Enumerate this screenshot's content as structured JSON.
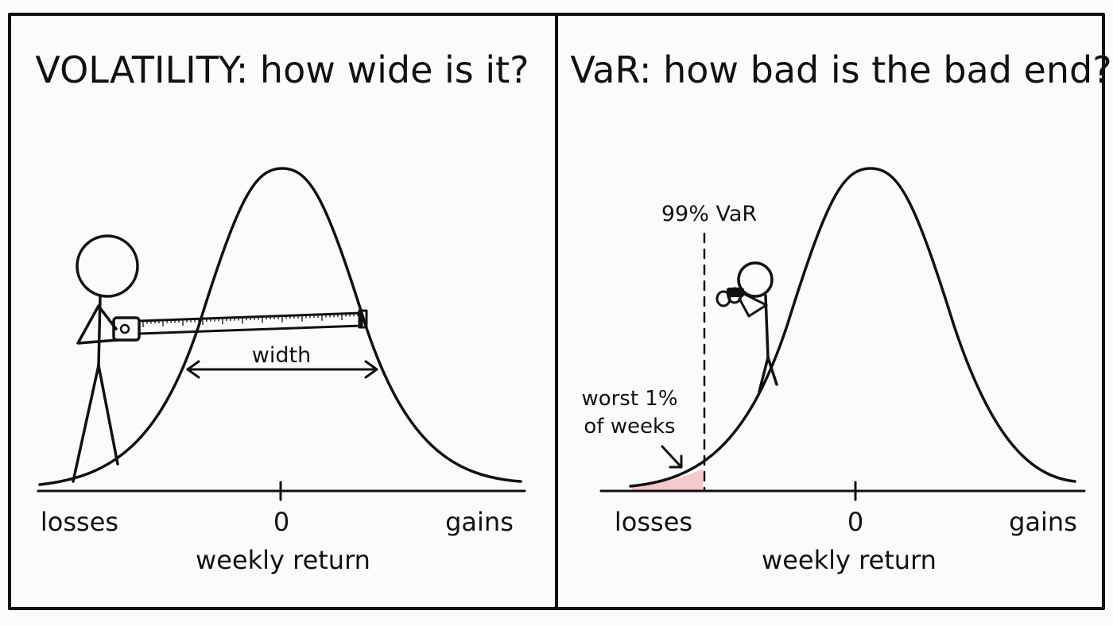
{
  "left_panel": {
    "title": "VOLATILITY: how wide is it?",
    "width_label": "width",
    "axis": {
      "left_label": "losses",
      "center_label": "0",
      "right_label": "gains",
      "title": "weekly return"
    }
  },
  "right_panel": {
    "title": "VaR: how bad is the bad end?",
    "var_label": "99% VaR",
    "tail_note_line1": "worst 1%",
    "tail_note_line2": "of weeks",
    "axis": {
      "left_label": "losses",
      "center_label": "0",
      "right_label": "gains",
      "title": "weekly return"
    }
  },
  "colors": {
    "ink": "#111111",
    "background": "#fbfbfb",
    "tail_fill": "#f6c9cc",
    "tape": "#ffffff"
  },
  "icons": [
    "stick-figure-icon",
    "tape-measure-icon",
    "binoculars-icon",
    "stick-figure-with-binoculars-icon",
    "arrow-icon"
  ]
}
